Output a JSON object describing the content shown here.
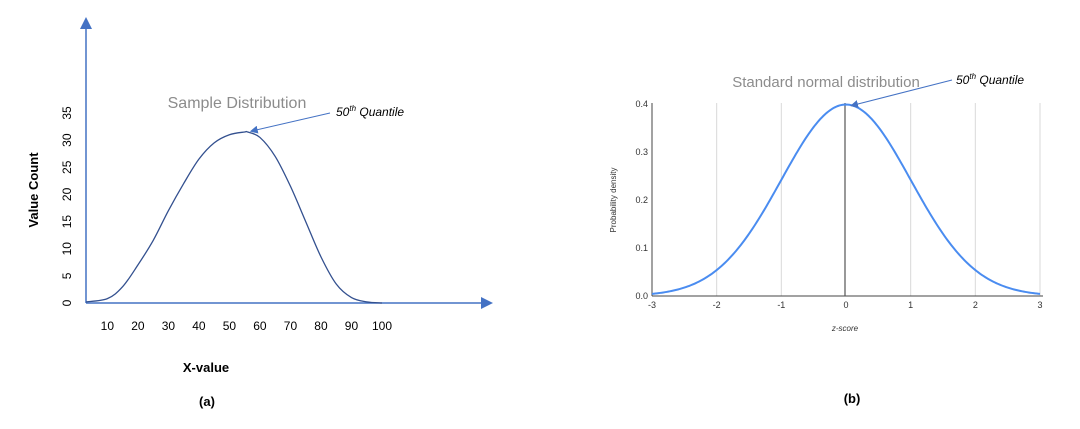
{
  "chart_data": [
    {
      "type": "line",
      "panel_label": "(a)",
      "title": "Sample Distribution",
      "xlabel": "X-value",
      "ylabel": "Value Count",
      "x_ticks": [
        10,
        20,
        30,
        40,
        50,
        60,
        70,
        80,
        90,
        100
      ],
      "y_ticks": [
        0,
        5,
        10,
        15,
        20,
        25,
        30,
        35
      ],
      "xlim": [
        3,
        100
      ],
      "ylim": [
        0,
        35
      ],
      "grid": false,
      "annotation": {
        "text_base": "50",
        "text_sup": "th",
        "text_rest": " Quantile",
        "x": 56,
        "y": 31.5
      },
      "x": [
        3,
        10,
        15,
        20,
        25,
        30,
        35,
        40,
        45,
        50,
        55,
        56,
        60,
        65,
        70,
        75,
        80,
        85,
        90,
        95,
        100
      ],
      "y": [
        0.2,
        0.8,
        3.0,
        7.0,
        11.5,
        17.0,
        22.0,
        26.5,
        29.5,
        31.0,
        31.5,
        31.5,
        30.5,
        27.0,
        21.5,
        15.0,
        8.5,
        3.5,
        1.0,
        0.2,
        0.0
      ]
    },
    {
      "type": "line",
      "panel_label": "(b)",
      "title": "Standard normal distribution",
      "xlabel": "z-score",
      "ylabel": "Probability density",
      "x_ticks": [
        "-3",
        "-2",
        "-1",
        "0",
        "1",
        "2",
        "3"
      ],
      "y_ticks": [
        "0.0",
        "0.1",
        "0.2",
        "0.3",
        "0.4"
      ],
      "xlim": [
        -3,
        3
      ],
      "ylim": [
        0,
        0.4
      ],
      "grid": true,
      "annotation": {
        "text_base": "50",
        "text_sup": "th",
        "text_rest": " Quantile",
        "x": 0,
        "y": 0.4
      },
      "series": [
        {
          "function": "standard_normal_pdf",
          "color": "#4a8cf0"
        }
      ]
    }
  ],
  "colors": {
    "axis_a": "#4472c4",
    "curve_a": "#33508f",
    "curve_b": "#4a8cf0",
    "grid_b": "#d9d9d9",
    "title_gray": "#8c8c8c"
  }
}
